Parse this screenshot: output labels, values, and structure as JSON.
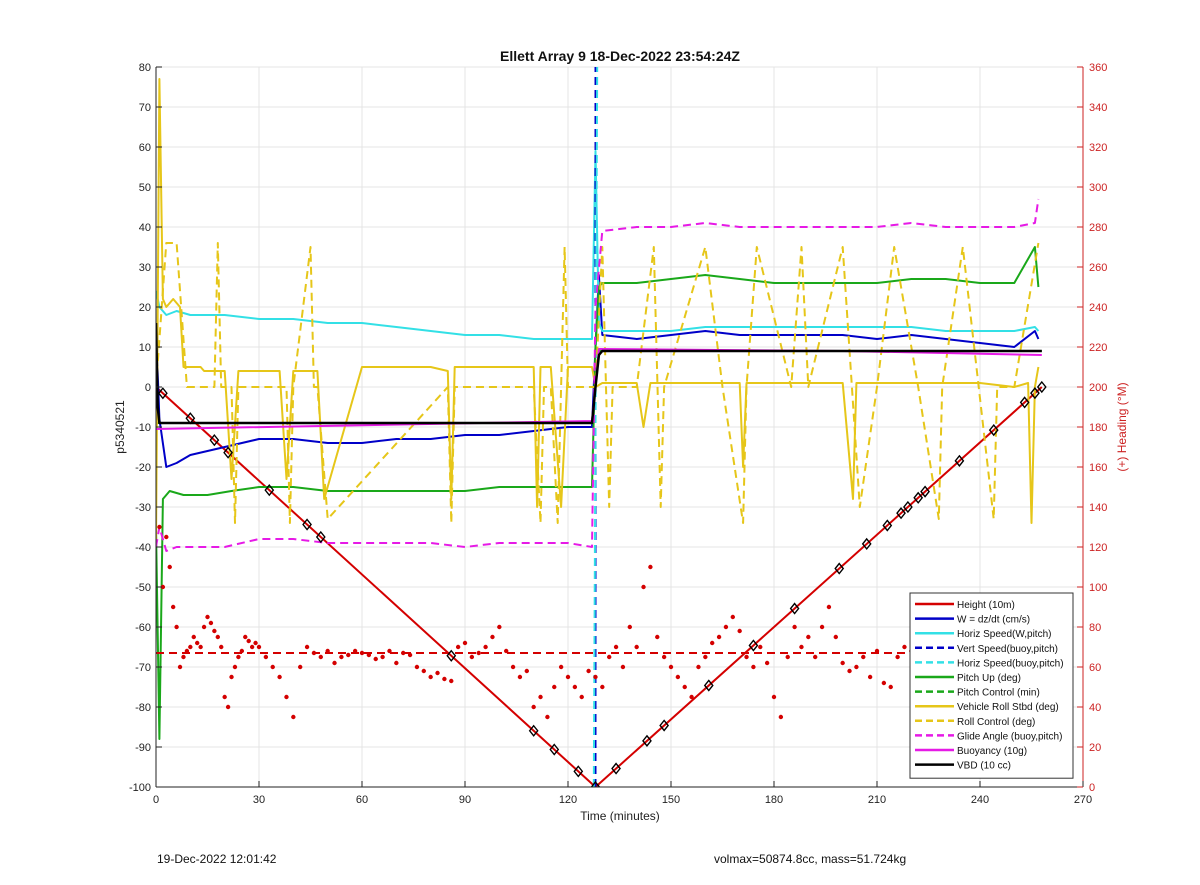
{
  "footer": {
    "timestamp": "19-Dec-2022 12:01:42",
    "params": "volmax=50874.8cc, mass=51.724kg"
  },
  "chart_data": {
    "type": "line",
    "title": "Ellett Array 9 18-Dec-2022 23:54:24Z",
    "xlabel": "Time (minutes)",
    "ylabel": "p5340521",
    "y2label": "(+) Heading (°M)",
    "xlim": [
      0,
      270
    ],
    "ylim": [
      -100,
      80
    ],
    "y2lim": [
      0,
      360
    ],
    "xticks": [
      0,
      30,
      60,
      90,
      120,
      150,
      180,
      210,
      240,
      270
    ],
    "yticks": [
      -100,
      -90,
      -80,
      -70,
      -60,
      -50,
      -40,
      -30,
      -20,
      -10,
      0,
      10,
      20,
      30,
      40,
      50,
      60,
      70,
      80
    ],
    "y2ticks": [
      0,
      20,
      40,
      60,
      80,
      100,
      120,
      140,
      160,
      180,
      200,
      220,
      240,
      260,
      280,
      300,
      320,
      340,
      360
    ],
    "grid": true,
    "legend_position": "bottom-right",
    "vertical_marker": {
      "x": 128,
      "color": "#0000cc",
      "style": "dashed"
    },
    "colors": {
      "red": "#d40000",
      "blue": "#0000c8",
      "cyan": "#33e0e6",
      "green": "#1aa81a",
      "yellow": "#e6c619",
      "magenta": "#e61ae6",
      "black": "#000000",
      "axis2": "#cc2222"
    },
    "series": [
      {
        "name": "Height (10m)",
        "color": "#d40000",
        "style": "solid",
        "width": 2,
        "x": [
          0,
          128,
          258
        ],
        "y": [
          0,
          -100,
          0
        ]
      },
      {
        "name": "W = dz/dt (cm/s)",
        "color": "#0000c8",
        "style": "solid",
        "width": 2,
        "x": [
          0,
          1,
          3,
          6,
          10,
          15,
          20,
          30,
          40,
          50,
          60,
          70,
          80,
          90,
          100,
          110,
          120,
          127,
          128,
          129,
          130,
          140,
          150,
          160,
          170,
          180,
          190,
          200,
          210,
          220,
          230,
          240,
          250,
          256,
          257
        ],
        "y": [
          15,
          -8,
          -20,
          -19,
          -17,
          -16,
          -15,
          -13,
          -13,
          -14,
          -14,
          -13,
          -13,
          -12,
          -12,
          -11,
          -10,
          -10,
          10,
          28,
          13,
          12,
          13,
          14,
          13,
          13,
          13,
          13,
          12,
          13,
          12,
          11,
          10,
          14,
          12
        ]
      },
      {
        "name": "Horiz Speed(W,pitch)",
        "color": "#33e0e6",
        "style": "solid",
        "width": 2,
        "x": [
          0,
          1,
          3,
          6,
          10,
          20,
          30,
          40,
          50,
          60,
          70,
          80,
          90,
          100,
          110,
          120,
          127,
          128,
          129,
          130,
          140,
          150,
          160,
          170,
          180,
          190,
          200,
          210,
          220,
          230,
          240,
          250,
          256,
          257
        ],
        "y": [
          24,
          20,
          18,
          19,
          18,
          18,
          17,
          17,
          16,
          16,
          15,
          14,
          13,
          13,
          12,
          12,
          12,
          59,
          16,
          14,
          14,
          14,
          15,
          15,
          15,
          15,
          15,
          15,
          15,
          14,
          14,
          14,
          15,
          14
        ]
      },
      {
        "name": "Vert Speed(buoy,pitch)",
        "color": "#0000c8",
        "style": "dashed",
        "width": 2,
        "x": [
          128,
          128
        ],
        "y": [
          -100,
          80
        ]
      },
      {
        "name": "Horiz Speed(buoy,pitch)",
        "color": "#33e0e6",
        "style": "dashed",
        "width": 2,
        "x": [
          127.5,
          128.5
        ],
        "y": [
          -100,
          80
        ]
      },
      {
        "name": "Pitch Up (deg)",
        "color": "#1aa81a",
        "style": "solid",
        "width": 2,
        "x": [
          0,
          1,
          2,
          4,
          8,
          15,
          22,
          30,
          40,
          50,
          60,
          70,
          80,
          90,
          100,
          110,
          120,
          127,
          128,
          129,
          130,
          140,
          150,
          160,
          170,
          180,
          190,
          200,
          210,
          220,
          230,
          240,
          250,
          256,
          257
        ],
        "y": [
          -35,
          -88,
          -28,
          -26,
          -27,
          -27,
          -26,
          -25,
          -25,
          -26,
          -26,
          -26,
          -26,
          -26,
          -25,
          -25,
          -25,
          -25,
          10,
          25,
          26,
          26,
          27,
          28,
          27,
          26,
          26,
          26,
          26,
          27,
          27,
          26,
          26,
          35,
          25
        ]
      },
      {
        "name": "Pitch Control (min)",
        "color": "#1aa81a",
        "style": "dashed",
        "width": 2,
        "x": [
          0,
          127,
          129,
          258
        ],
        "y": [
          -9,
          -9,
          9,
          9
        ]
      },
      {
        "name": "Vehicle Roll Stbd (deg)",
        "color": "#e6c619",
        "style": "solid",
        "width": 2,
        "x": [
          0,
          1,
          2,
          3,
          5,
          7,
          8,
          13,
          14,
          20,
          22,
          24,
          30,
          36,
          38,
          40,
          44,
          47,
          49,
          60,
          70,
          80,
          85,
          86,
          87,
          100,
          110,
          111,
          112,
          115,
          118,
          120,
          127,
          128,
          130,
          140,
          142,
          144,
          147,
          150,
          160,
          170,
          171,
          172,
          180,
          190,
          200,
          203,
          204,
          210,
          220,
          230,
          240,
          250,
          254,
          255,
          256,
          257
        ],
        "y": [
          -40,
          77,
          22,
          20,
          22,
          20,
          5,
          5,
          4,
          4,
          -23,
          4,
          4,
          4,
          -23,
          4,
          4,
          4,
          -28,
          5,
          5,
          5,
          4,
          -28,
          5,
          5,
          5,
          -30,
          5,
          5,
          -30,
          5,
          5,
          0,
          1,
          1,
          -10,
          1,
          1,
          1,
          1,
          1,
          -20,
          1,
          1,
          1,
          1,
          -28,
          1,
          1,
          1,
          1,
          1,
          0,
          1,
          -34,
          0,
          5
        ]
      },
      {
        "name": "Roll Control (deg)",
        "color": "#e6c619",
        "style": "dashed",
        "width": 2,
        "x": [
          0,
          3,
          6,
          9,
          10,
          17,
          18,
          19,
          22,
          23,
          24,
          38,
          39,
          40,
          45,
          46,
          47,
          50,
          85,
          86,
          87,
          110,
          112,
          113,
          115,
          117,
          118,
          119,
          120,
          127,
          128,
          130,
          132,
          133,
          140,
          145,
          147,
          148,
          160,
          165,
          171,
          172,
          175,
          185,
          188,
          190,
          200,
          205,
          210,
          215,
          222,
          228,
          229,
          235,
          244,
          245,
          250,
          257
        ],
        "y": [
          0,
          36,
          36,
          0,
          0,
          0,
          36,
          0,
          0,
          -34,
          0,
          0,
          -34,
          0,
          35,
          0,
          0,
          -33,
          0,
          -34,
          0,
          0,
          -34,
          0,
          0,
          -34,
          0,
          35,
          0,
          0,
          0,
          35,
          -30,
          0,
          0,
          35,
          -30,
          0,
          35,
          0,
          -34,
          0,
          35,
          0,
          35,
          0,
          35,
          -30,
          0,
          35,
          0,
          -33,
          0,
          35,
          -33,
          0,
          0,
          36
        ]
      },
      {
        "name": "Glide Angle (buoy,pitch)",
        "color": "#e61ae6",
        "style": "dashed",
        "width": 2,
        "x": [
          0,
          1,
          3,
          6,
          10,
          20,
          30,
          40,
          50,
          60,
          70,
          80,
          90,
          100,
          110,
          120,
          127,
          128,
          130,
          140,
          150,
          160,
          170,
          180,
          190,
          200,
          210,
          220,
          230,
          240,
          250,
          256,
          257
        ],
        "y": [
          -40,
          -35,
          -41,
          -40,
          -40,
          -40,
          -38,
          -38,
          -39,
          -39,
          -39,
          -39,
          -40,
          -39,
          -39,
          -39,
          -40,
          20,
          39,
          40,
          40,
          41,
          40,
          40,
          40,
          40,
          40,
          41,
          40,
          40,
          40,
          41,
          47
        ]
      },
      {
        "name": "Buoyancy (10g)",
        "color": "#e61ae6",
        "style": "solid",
        "width": 2,
        "x": [
          0,
          127,
          128,
          129,
          200,
          258
        ],
        "y": [
          -10.5,
          -8.5,
          0,
          9.5,
          9,
          8
        ]
      },
      {
        "name": "VBD (10 cc)",
        "color": "#000000",
        "style": "solid",
        "width": 2.5,
        "x": [
          0,
          0.5,
          1,
          127,
          128,
          129,
          130,
          258
        ],
        "y": [
          16,
          -5,
          -9,
          -9,
          0,
          8,
          9,
          9
        ]
      },
      {
        "name": "",
        "axis": "right",
        "color": "#d40000",
        "style": "dashed",
        "width": 2,
        "x": [
          0,
          258
        ],
        "y": [
          67,
          67
        ]
      },
      {
        "name": "",
        "axis": "right",
        "color": "#d40000",
        "style": "markers",
        "x": [
          1,
          2,
          3,
          4,
          5,
          6,
          7,
          8,
          9,
          10,
          11,
          12,
          13,
          14,
          15,
          16,
          17,
          18,
          19,
          20,
          21,
          22,
          23,
          24,
          25,
          26,
          27,
          28,
          29,
          30,
          32,
          34,
          36,
          38,
          40,
          42,
          44,
          46,
          48,
          50,
          52,
          54,
          56,
          58,
          60,
          62,
          64,
          66,
          68,
          70,
          72,
          74,
          76,
          78,
          80,
          82,
          84,
          86,
          88,
          90,
          92,
          94,
          96,
          98,
          100,
          102,
          104,
          106,
          108,
          110,
          112,
          114,
          116,
          118,
          120,
          122,
          124,
          126,
          128,
          130,
          132,
          134,
          136,
          138,
          140,
          142,
          144,
          146,
          148,
          150,
          152,
          154,
          156,
          158,
          160,
          162,
          164,
          166,
          168,
          170,
          172,
          174,
          176,
          178,
          180,
          182,
          184,
          186,
          188,
          190,
          192,
          194,
          196,
          198,
          200,
          202,
          204,
          206,
          208,
          210,
          212,
          214,
          216,
          218,
          220,
          222,
          224,
          226,
          228,
          230,
          232,
          234,
          236,
          238,
          240,
          242,
          244,
          246,
          248,
          250,
          252,
          254,
          256,
          258
        ],
        "y": [
          130,
          100,
          125,
          110,
          90,
          80,
          60,
          65,
          68,
          70,
          75,
          72,
          70,
          80,
          85,
          82,
          78,
          75,
          70,
          45,
          40,
          55,
          60,
          65,
          68,
          75,
          73,
          70,
          72,
          70,
          65,
          60,
          55,
          45,
          35,
          60,
          70,
          67,
          65,
          68,
          62,
          65,
          66,
          68,
          67,
          66,
          64,
          65,
          68,
          62,
          67,
          66,
          60,
          58,
          55,
          57,
          54,
          53,
          70,
          72,
          65,
          67,
          70,
          75,
          80,
          68,
          60,
          55,
          58,
          40,
          45,
          35,
          50,
          60,
          55,
          50,
          45,
          58,
          55,
          50,
          65,
          70,
          60,
          80,
          70,
          100,
          110,
          75,
          65,
          60,
          55,
          50,
          45,
          60,
          65,
          72,
          75,
          80,
          85,
          78,
          65,
          60,
          70,
          62,
          45,
          35,
          65,
          80,
          70,
          75,
          65,
          80,
          90,
          75,
          62,
          58,
          60,
          65,
          55,
          68,
          52,
          50,
          65,
          70,
          68,
          60,
          55,
          62,
          95,
          75,
          70,
          65,
          58,
          62,
          72,
          70,
          58,
          48,
          55,
          50,
          52,
          45,
          58,
          40
        ]
      }
    ],
    "markers": {
      "color": "#000000",
      "x": [
        2,
        10,
        17,
        21,
        33,
        44,
        48,
        86,
        110,
        116,
        123,
        128,
        134,
        143,
        148,
        161,
        174,
        186,
        199,
        207,
        213,
        217,
        219,
        222,
        224,
        234,
        244,
        253,
        256,
        258
      ]
    }
  }
}
